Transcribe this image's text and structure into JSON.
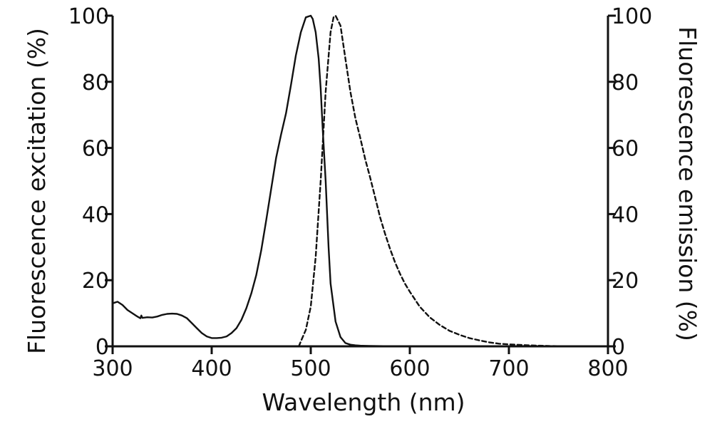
{
  "chart_data": {
    "type": "line",
    "title": "",
    "xlabel": "Wavelength (nm)",
    "ylabel_left": "Fluorescence excitation (%)",
    "ylabel_right": "Fluorescence emission (%)",
    "xlim": [
      300,
      800
    ],
    "ylim": [
      0,
      100
    ],
    "x_ticks": [
      300,
      400,
      500,
      600,
      700,
      800
    ],
    "y_ticks": [
      0,
      20,
      40,
      60,
      80,
      100
    ],
    "series": [
      {
        "name": "Fluorescence excitation",
        "axis": "left",
        "style": "solid",
        "x": [
          300,
          305,
          310,
          315,
          320,
          325,
          328,
          329,
          330,
          335,
          340,
          345,
          350,
          355,
          360,
          365,
          370,
          375,
          380,
          385,
          390,
          395,
          400,
          405,
          410,
          415,
          420,
          425,
          430,
          435,
          440,
          445,
          450,
          455,
          460,
          465,
          470,
          475,
          480,
          485,
          490,
          495,
          500,
          502,
          505,
          508,
          510,
          512,
          515,
          518,
          520,
          525,
          530,
          535,
          540,
          545,
          550,
          560,
          580,
          600,
          620
        ],
        "values": [
          13.0,
          13.5,
          12.5,
          11.0,
          10.0,
          9.0,
          8.5,
          9.3,
          8.6,
          8.8,
          8.7,
          9.0,
          9.5,
          9.8,
          9.9,
          9.8,
          9.3,
          8.5,
          7.0,
          5.5,
          4.0,
          3.0,
          2.5,
          2.5,
          2.6,
          3.0,
          4.0,
          5.5,
          8.0,
          11.5,
          16.0,
          21.5,
          29.0,
          38.0,
          47.5,
          57.0,
          64.0,
          70.5,
          79.0,
          88.0,
          95.0,
          99.5,
          100.0,
          99.0,
          95.0,
          87.0,
          78.0,
          66.0,
          50.0,
          30.0,
          19.0,
          7.5,
          2.8,
          1.0,
          0.5,
          0.3,
          0.2,
          0.1,
          0.05,
          0.0,
          0.0
        ]
      },
      {
        "name": "Fluorescence emission",
        "axis": "right",
        "style": "dashed",
        "x": [
          488,
          490,
          495,
          500,
          505,
          510,
          515,
          520,
          523,
          525,
          530,
          535,
          540,
          545,
          550,
          555,
          560,
          565,
          570,
          575,
          580,
          585,
          590,
          595,
          600,
          610,
          620,
          630,
          640,
          650,
          660,
          670,
          680,
          690,
          700,
          720,
          740,
          760
        ],
        "values": [
          0.0,
          1.5,
          5.0,
          12.0,
          27.0,
          50.0,
          77.0,
          95.0,
          99.5,
          100.0,
          97.0,
          87.0,
          77.0,
          69.0,
          63.0,
          56.5,
          51.0,
          45.0,
          39.0,
          34.0,
          29.5,
          25.5,
          22.0,
          19.0,
          16.5,
          12.0,
          8.8,
          6.5,
          4.7,
          3.5,
          2.5,
          1.8,
          1.2,
          0.8,
          0.6,
          0.3,
          0.1,
          0.0
        ]
      }
    ]
  }
}
